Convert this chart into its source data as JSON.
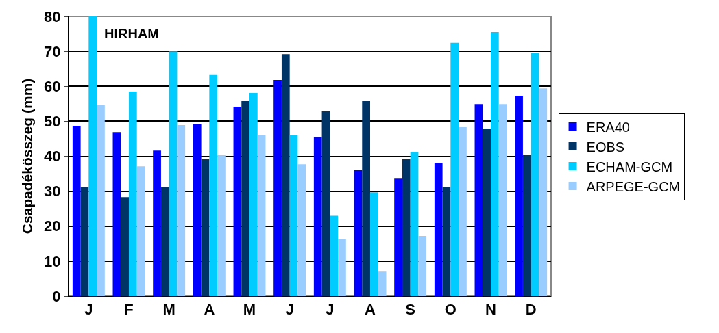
{
  "chart_data": {
    "type": "bar",
    "annotations": [
      "HIRHAM"
    ],
    "ylabel": "Csapadékösszeg (mm)",
    "categories": [
      "J",
      "F",
      "M",
      "A",
      "M",
      "J",
      "J",
      "A",
      "S",
      "O",
      "N",
      "D"
    ],
    "series": [
      {
        "name": "ERA40",
        "color": "#0000ff",
        "values": [
          48.7,
          46.9,
          41.6,
          49.3,
          54.2,
          61.8,
          45.5,
          36.0,
          33.6,
          38.1,
          54.9,
          57.3
        ]
      },
      {
        "name": "EOBS",
        "color": "#003366",
        "values": [
          31.1,
          28.3,
          31.1,
          39.1,
          55.9,
          69.2,
          52.8,
          55.9,
          39.1,
          31.1,
          47.9,
          40.3
        ]
      },
      {
        "name": "ECHAM-GCM",
        "color": "#00ccff",
        "values": [
          80.0,
          58.5,
          70.0,
          63.4,
          58.1,
          46.1,
          23.0,
          29.7,
          41.2,
          72.4,
          75.5,
          69.6
        ]
      },
      {
        "name": "ARPEGE-GCM",
        "color": "#99ccff",
        "values": [
          54.6,
          37.1,
          48.9,
          40.3,
          46.1,
          37.7,
          16.4,
          7.0,
          17.2,
          48.3,
          54.9,
          59.4
        ]
      }
    ],
    "ylim": [
      0,
      80
    ],
    "yticks": [
      0,
      10,
      20,
      30,
      40,
      50,
      60,
      70,
      80
    ],
    "grid": "y",
    "legend": "right"
  }
}
